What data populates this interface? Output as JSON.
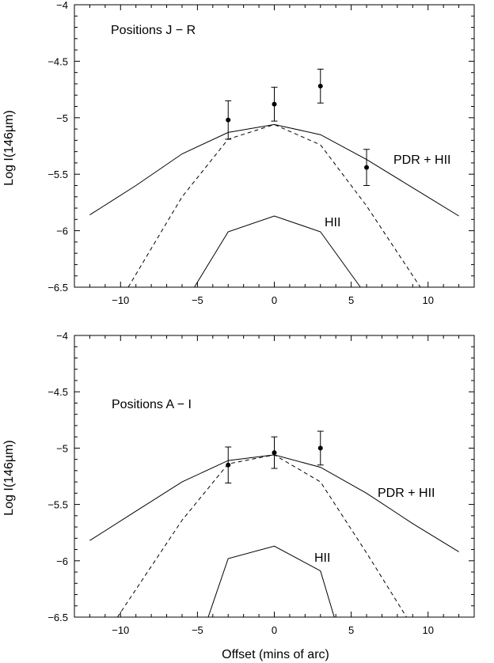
{
  "chart_data": [
    {
      "type": "line",
      "title": "",
      "ylabel": "Log I(146µm)",
      "xlabel": "",
      "xlim": [
        -13,
        13
      ],
      "ylim": [
        -6.5,
        -4
      ],
      "xticks": [
        -10,
        -5,
        0,
        5,
        10
      ],
      "yticks": [
        -6.5,
        -6,
        -5.5,
        -5,
        -4.5,
        -4
      ],
      "xtick_labels": [
        "−10",
        "−5",
        "0",
        "5",
        "10"
      ],
      "ytick_labels": [
        "−6.5",
        "−6",
        "−5.5",
        "−5",
        "−4.5",
        "−4"
      ],
      "annotations": [
        "Positions J − R",
        "PDR + HII",
        "HII"
      ],
      "series": [
        {
          "name": "PDR + HII",
          "style": "solid",
          "x": [
            -12,
            -9,
            -6,
            -3,
            0,
            3,
            6,
            9,
            12
          ],
          "y": [
            -5.86,
            -5.6,
            -5.32,
            -5.13,
            -5.06,
            -5.15,
            -5.37,
            -5.62,
            -5.87
          ]
        },
        {
          "name": "",
          "style": "dashed",
          "x": [
            -9.5,
            -6,
            -3,
            0,
            3,
            6,
            9.5
          ],
          "y": [
            -6.5,
            -5.7,
            -5.19,
            -5.06,
            -5.24,
            -5.78,
            -6.5
          ]
        },
        {
          "name": "HII",
          "style": "solid",
          "x": [
            -5.2,
            -3,
            0,
            3,
            5.6
          ],
          "y": [
            -6.5,
            -6.01,
            -5.87,
            -6.01,
            -6.5
          ]
        },
        {
          "name": "",
          "style": "points",
          "x": [
            -3,
            0,
            3,
            6
          ],
          "y": [
            -5.02,
            -4.88,
            -4.72,
            -5.44
          ],
          "err": [
            0.17,
            0.15,
            0.15,
            0.16
          ]
        }
      ]
    },
    {
      "type": "line",
      "title": "",
      "ylabel": "Log I(146µm)",
      "xlabel": "Offset (mins of arc)",
      "xlim": [
        -13,
        13
      ],
      "ylim": [
        -6.5,
        -4
      ],
      "xticks": [
        -10,
        -5,
        0,
        5,
        10
      ],
      "yticks": [
        -6.5,
        -6,
        -5.5,
        -5,
        -4.5,
        -4
      ],
      "xtick_labels": [
        "−10",
        "−5",
        "0",
        "5",
        "10"
      ],
      "ytick_labels": [
        "−6.5",
        "−6",
        "−5.5",
        "−5",
        "−4.5",
        "−4"
      ],
      "annotations": [
        "Positions A − I",
        "PDR + HII",
        "HII"
      ],
      "series": [
        {
          "name": "PDR + HII",
          "style": "solid",
          "x": [
            -12,
            -9,
            -6,
            -3,
            0,
            3,
            6,
            9,
            12
          ],
          "y": [
            -5.82,
            -5.56,
            -5.3,
            -5.11,
            -5.06,
            -5.17,
            -5.4,
            -5.67,
            -5.92
          ]
        },
        {
          "name": "",
          "style": "dashed",
          "x": [
            -10.2,
            -6,
            -3,
            0,
            3,
            6,
            8.6
          ],
          "y": [
            -6.5,
            -5.64,
            -5.14,
            -5.06,
            -5.3,
            -5.93,
            -6.5
          ]
        },
        {
          "name": "HII",
          "style": "solid",
          "x": [
            -4.3,
            -3,
            0,
            3,
            3.9
          ],
          "y": [
            -6.5,
            -5.98,
            -5.87,
            -6.09,
            -6.5
          ]
        },
        {
          "name": "",
          "style": "points",
          "x": [
            -3,
            0,
            3
          ],
          "y": [
            -5.15,
            -5.04,
            -5.0
          ],
          "err": [
            0.16,
            0.14,
            0.15
          ]
        }
      ]
    }
  ]
}
